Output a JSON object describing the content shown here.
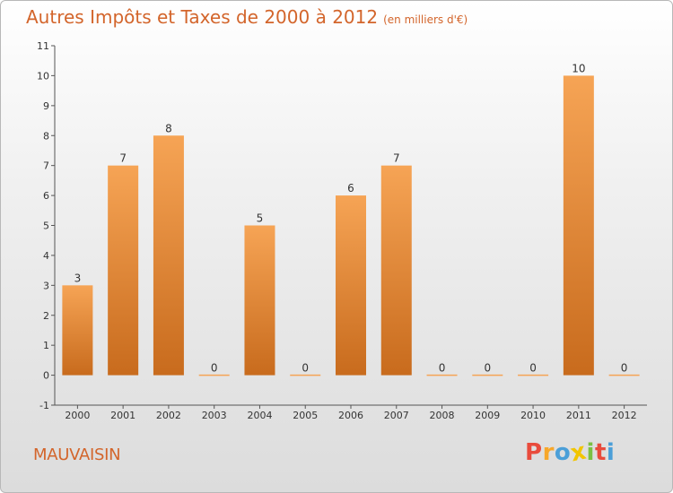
{
  "title": "Autres Impôts et Taxes de 2000 à 2012",
  "subtitle": "(en milliers d'€)",
  "commune": "MAUVAISIN",
  "logo": {
    "letters": [
      "P",
      "r",
      "o",
      "x",
      "i",
      "t",
      "i"
    ],
    "colors": [
      "#e94b3c",
      "#f7a72a",
      "#4b9fd8",
      "#f2c500",
      "#7ac043",
      "#e94b3c",
      "#4b9fd8"
    ]
  },
  "colors": {
    "bar_top": "#f6a455",
    "bar_bottom": "#c86b1d",
    "title": "#d3652b"
  },
  "chart_data": {
    "type": "bar",
    "title": "Autres Impôts et Taxes de 2000 à 2012",
    "subtitle": "(en milliers d'€)",
    "xlabel": "",
    "ylabel": "",
    "categories": [
      "2000",
      "2001",
      "2002",
      "2003",
      "2004",
      "2005",
      "2006",
      "2007",
      "2008",
      "2009",
      "2010",
      "2011",
      "2012"
    ],
    "values": [
      3,
      7,
      8,
      0,
      5,
      0,
      6,
      7,
      0,
      0,
      0,
      10,
      0
    ],
    "y_ticks": [
      "-1",
      "0",
      "1",
      "2",
      "3",
      "4",
      "5",
      "6",
      "7",
      "8",
      "9",
      "10",
      "11"
    ],
    "ylim": [
      -1,
      11
    ],
    "grid": false,
    "legend": "none"
  }
}
